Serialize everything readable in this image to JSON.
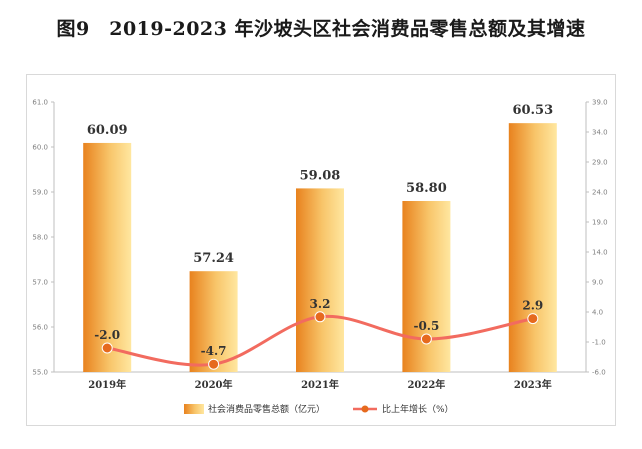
{
  "title": "图9　2019-2023 年沙坡头区社会消费品零售总额及其增速",
  "chart_data": {
    "type": "bar+line",
    "categories": [
      "2019年",
      "2020年",
      "2021年",
      "2022年",
      "2023年"
    ],
    "series": [
      {
        "name": "社会消费品零售总额（亿元）",
        "type": "bar",
        "axis": "left",
        "values": [
          60.09,
          57.24,
          59.08,
          58.8,
          60.53
        ],
        "labels": [
          "60.09",
          "57.24",
          "59.08",
          "58.80",
          "60.53"
        ]
      },
      {
        "name": "比上年增长（%）",
        "type": "line",
        "axis": "right",
        "values": [
          -2.0,
          -4.7,
          3.2,
          -0.5,
          2.9
        ],
        "labels": [
          "-2.0",
          "-4.7",
          "3.2",
          "-0.5",
          "2.9"
        ]
      }
    ],
    "left_axis": {
      "min": 55.0,
      "max": 61.0,
      "ticks": [
        "61.0",
        "60.0",
        "59.0",
        "58.0",
        "57.0",
        "56.0",
        "55.0"
      ]
    },
    "right_axis": {
      "min": -6.0,
      "max": 39.0,
      "ticks": [
        "39.0",
        "34.0",
        "29.0",
        "24.0",
        "19.0",
        "14.0",
        "9.0",
        "4.0",
        "-1.0",
        "-6.0"
      ]
    },
    "legend": [
      "社会消费品零售总额（亿元）",
      "比上年增长（%）"
    ],
    "colors": {
      "bar_dark": "#E8821E",
      "bar_light": "#FFE7A0",
      "line": "#F26B5F",
      "marker": "#E66A1E"
    }
  }
}
